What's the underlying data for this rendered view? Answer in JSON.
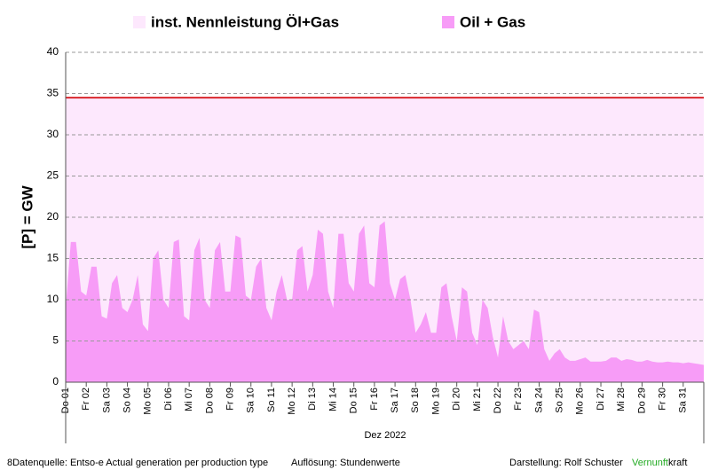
{
  "chart_data": {
    "type": "area",
    "ylabel": "[P]  = GW",
    "xlabel": "Dez 2022",
    "xlim": [
      0,
      31
    ],
    "ylim": [
      0,
      40
    ],
    "yticks": [
      0,
      5,
      10,
      15,
      20,
      25,
      30,
      35,
      40
    ],
    "grid": true,
    "xticks": [
      {
        "value": 0,
        "label": "Do 01"
      },
      {
        "value": 1,
        "label": "Fr 02"
      },
      {
        "value": 2,
        "label": "Sa 03"
      },
      {
        "value": 3,
        "label": "So 04"
      },
      {
        "value": 4,
        "label": "Mo 05"
      },
      {
        "value": 5,
        "label": "Di 06"
      },
      {
        "value": 6,
        "label": "Mi 07"
      },
      {
        "value": 7,
        "label": "Do 08"
      },
      {
        "value": 8,
        "label": "Fr 09"
      },
      {
        "value": 9,
        "label": "Sa 10"
      },
      {
        "value": 10,
        "label": "So 11"
      },
      {
        "value": 11,
        "label": "Mo 12"
      },
      {
        "value": 12,
        "label": "Di 13"
      },
      {
        "value": 13,
        "label": "Mi 14"
      },
      {
        "value": 14,
        "label": "Do 15"
      },
      {
        "value": 15,
        "label": "Fr 16"
      },
      {
        "value": 16,
        "label": "Sa 17"
      },
      {
        "value": 17,
        "label": "So 18"
      },
      {
        "value": 18,
        "label": "Mo 19"
      },
      {
        "value": 19,
        "label": "Di 20"
      },
      {
        "value": 20,
        "label": "Mi 21"
      },
      {
        "value": 21,
        "label": "Do 22"
      },
      {
        "value": 22,
        "label": "Fr 23"
      },
      {
        "value": 23,
        "label": "Sa 24"
      },
      {
        "value": 24,
        "label": "So 25"
      },
      {
        "value": 25,
        "label": "Mo 26"
      },
      {
        "value": 26,
        "label": "Di 27"
      },
      {
        "value": 27,
        "label": "Mi 28"
      },
      {
        "value": 28,
        "label": "Do 29"
      },
      {
        "value": 29,
        "label": "Fr 30"
      },
      {
        "value": 30,
        "label": "Sa 31"
      }
    ],
    "series": [
      {
        "name": "inst. Nennleistung Öl+Gas",
        "color": "#fde8fd",
        "line_color": "#d9262c",
        "x": [
          0,
          31
        ],
        "values": [
          34.5,
          34.5
        ]
      },
      {
        "name": "Oil + Gas",
        "color": "#f79cf7",
        "x": [
          0,
          0.25,
          0.5,
          0.75,
          1,
          1.25,
          1.5,
          1.75,
          2,
          2.25,
          2.5,
          2.75,
          3,
          3.25,
          3.5,
          3.75,
          4,
          4.25,
          4.5,
          4.75,
          5,
          5.25,
          5.5,
          5.75,
          6,
          6.25,
          6.5,
          6.75,
          7,
          7.25,
          7.5,
          7.75,
          8,
          8.25,
          8.5,
          8.75,
          9,
          9.25,
          9.5,
          9.75,
          10,
          10.25,
          10.5,
          10.75,
          11,
          11.25,
          11.5,
          11.75,
          12,
          12.25,
          12.5,
          12.75,
          13,
          13.25,
          13.5,
          13.75,
          14,
          14.25,
          14.5,
          14.75,
          15,
          15.25,
          15.5,
          15.75,
          16,
          16.25,
          16.5,
          16.75,
          17,
          17.25,
          17.5,
          17.75,
          18,
          18.25,
          18.5,
          18.75,
          19,
          19.25,
          19.5,
          19.75,
          20,
          20.25,
          20.5,
          20.75,
          21,
          21.25,
          21.5,
          21.75,
          22,
          22.25,
          22.5,
          22.75,
          23,
          23.25,
          23.5,
          23.75,
          24,
          24.25,
          24.5,
          24.75,
          25,
          25.25,
          25.5,
          25.75,
          26,
          26.25,
          26.5,
          26.75,
          27,
          27.25,
          27.5,
          27.75,
          28,
          28.25,
          28.5,
          28.75,
          29,
          29.25,
          29.5,
          29.75,
          30,
          30.25,
          30.5,
          30.75,
          31
        ],
        "values": [
          9,
          17,
          17,
          11,
          10.5,
          14,
          14,
          8,
          7.7,
          12,
          13,
          9,
          8.5,
          10,
          13,
          7,
          6.2,
          15,
          16,
          10,
          9,
          17,
          17.3,
          8,
          7.5,
          16,
          17.5,
          10,
          9,
          16,
          17,
          11,
          11,
          17.8,
          17.5,
          10.5,
          10,
          14,
          15,
          9,
          7.5,
          11,
          13,
          10,
          10,
          16,
          16.5,
          11,
          13,
          18.5,
          18,
          11,
          9,
          18,
          18,
          12,
          11,
          18,
          19,
          12,
          11.5,
          19,
          19.5,
          12,
          10,
          12.5,
          13,
          10,
          6,
          7,
          8.5,
          6,
          6,
          11.5,
          12,
          8,
          5,
          11.5,
          11,
          6,
          4.5,
          10,
          9,
          5.5,
          3,
          8,
          5,
          4,
          4.5,
          5,
          4,
          8.8,
          8.5,
          4,
          2.6,
          3.5,
          4,
          3,
          2.6,
          2.6,
          2.8,
          3,
          2.5,
          2.5,
          2.5,
          2.6,
          3,
          3,
          2.6,
          2.8,
          2.7,
          2.5,
          2.5,
          2.7,
          2.5,
          2.4,
          2.4,
          2.5,
          2.4,
          2.4,
          2.3,
          2.4,
          2.3,
          2.2,
          2.1
        ]
      }
    ],
    "footer": {
      "source": "8Datenquelle: Entso-e  Actual generation per production type",
      "resolution": "Auflösung: Stundenwerte",
      "author": "Darstellung:  Rolf Schuster",
      "brand_a": "Vernunft",
      "brand_a_color": "#22aa22",
      "brand_b": "kraft"
    }
  }
}
